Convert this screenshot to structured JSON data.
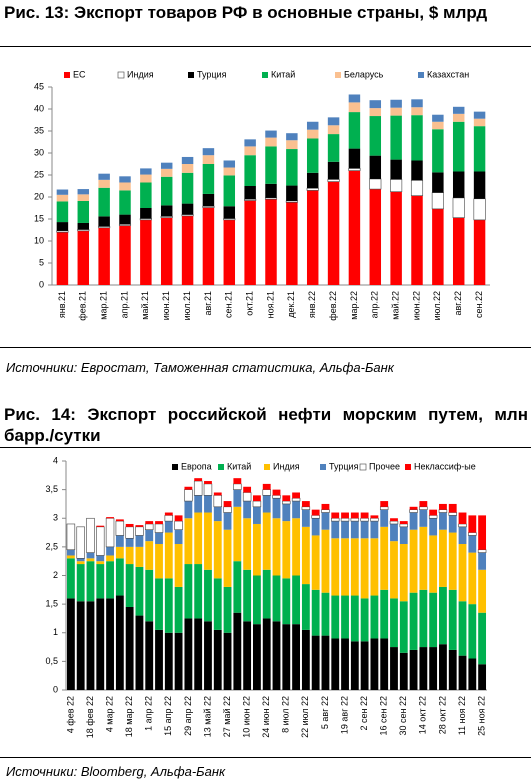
{
  "chart_data": [
    {
      "type": "bar",
      "stacked": true,
      "title": "Рис. 13: Экспорт товаров РФ в основные страны, $ млрд",
      "source": "Источники: Евростат, Таможенная статистика, Альфа-Банк",
      "categories": [
        "янв.21",
        "фев.21",
        "мар.21",
        "апр.21",
        "май.21",
        "июн.21",
        "июл.21",
        "авг.21",
        "сен.21",
        "окт.21",
        "ноя.21",
        "дек.21",
        "янв.22",
        "фев.22",
        "мар.22",
        "апр.22",
        "май.22",
        "июн.22",
        "июл.22",
        "авг.22",
        "сен.22"
      ],
      "series": [
        {
          "name": "ЕС",
          "color": "#ff0000",
          "values": [
            12,
            12.3,
            13,
            13.5,
            14.8,
            15.3,
            15.7,
            17.6,
            14.8,
            19.2,
            19.5,
            18.8,
            21.5,
            23.5,
            26,
            21.8,
            21.2,
            20.3,
            17.3,
            15.3,
            14.8
          ]
        },
        {
          "name": "Индия",
          "color": "#ffffff",
          "values": [
            0.3,
            0.3,
            0.3,
            0.3,
            0.3,
            0.3,
            0.3,
            0.3,
            0.3,
            0.3,
            0.3,
            0.3,
            0.5,
            0.5,
            0.5,
            2.3,
            2.8,
            3.5,
            3.7,
            4.5,
            4.8
          ]
        },
        {
          "name": "Турция",
          "color": "#000000",
          "values": [
            2,
            1.5,
            2.3,
            2.2,
            2.4,
            2.5,
            2.5,
            2.8,
            2.8,
            3,
            3.2,
            3.5,
            3.5,
            4,
            4.5,
            5.3,
            4.5,
            4.5,
            4.6,
            6,
            6.2
          ]
        },
        {
          "name": "Китай",
          "color": "#00b050",
          "values": [
            4.7,
            5,
            6.5,
            5.5,
            5.8,
            6.5,
            7,
            6.8,
            7,
            7,
            8.5,
            8.3,
            7.8,
            6.3,
            8.3,
            9,
            10,
            10.3,
            9.8,
            11.3,
            10.3
          ]
        },
        {
          "name": "Беларусь",
          "color": "#fac090",
          "values": [
            1.5,
            1.5,
            1.8,
            1.8,
            1.8,
            1.8,
            2,
            2,
            1.8,
            2,
            2,
            2,
            2,
            2,
            2.2,
            1.8,
            1.8,
            1.8,
            1.7,
            1.8,
            1.7
          ]
        },
        {
          "name": "Казахстан",
          "color": "#4f81bd",
          "values": [
            1.2,
            1.2,
            1.4,
            1.4,
            1.4,
            1.4,
            1.6,
            1.6,
            1.6,
            1.6,
            1.6,
            1.6,
            1.8,
            1.8,
            1.8,
            1.8,
            1.8,
            1.8,
            1.6,
            1.6,
            1.6
          ]
        }
      ],
      "ylim": [
        0,
        45
      ],
      "yticks": [
        0,
        5,
        10,
        15,
        20,
        25,
        30,
        35,
        40,
        45
      ],
      "grid": false
    },
    {
      "type": "bar",
      "stacked": true,
      "title": "Рис. 14: Экспорт российской нефти морским путем, млн барр./сутки",
      "source": "Источники: Bloomberg, Альфа-Банк",
      "categories": [
        "4 фев 22",
        null,
        "18 фев 22",
        null,
        "4 мар 22",
        null,
        "18 мар 22",
        null,
        "1 апр 22",
        null,
        "15 апр 22",
        null,
        "29 апр 22",
        null,
        "13 май 22",
        null,
        "27 май 22",
        null,
        "10 июн 22",
        null,
        "24 июн 22",
        null,
        "8 июл 22",
        null,
        "22 июл 22",
        null,
        "5 авг 22",
        null,
        "19 авг 22",
        null,
        "2 сен 22",
        null,
        "16 сен 22",
        null,
        "30 сен 22",
        null,
        "14 окт 22",
        null,
        "28 окт 22",
        null,
        "11 ноя 22",
        null,
        "25 ноя 22"
      ],
      "series": [
        {
          "name": "Европа",
          "color": "#000000",
          "values": [
            1.6,
            1.55,
            1.55,
            1.6,
            1.6,
            1.65,
            1.45,
            1.3,
            1.2,
            1.05,
            1.0,
            1.0,
            1.25,
            1.25,
            1.2,
            1.05,
            1.0,
            1.35,
            1.2,
            1.15,
            1.25,
            1.2,
            1.15,
            1.15,
            1.05,
            0.95,
            0.95,
            0.9,
            0.9,
            0.85,
            0.85,
            0.9,
            0.9,
            0.75,
            0.65,
            0.7,
            0.75,
            0.75,
            0.8,
            0.7,
            0.6,
            0.55,
            0.45
          ]
        },
        {
          "name": "Китай",
          "color": "#00b050",
          "values": [
            0.7,
            0.65,
            0.7,
            0.6,
            0.65,
            0.65,
            0.75,
            0.85,
            0.9,
            0.9,
            0.95,
            0.8,
            0.95,
            0.95,
            0.9,
            0.9,
            0.8,
            0.9,
            0.9,
            0.85,
            0.85,
            0.8,
            0.8,
            0.85,
            0.8,
            0.8,
            0.75,
            0.75,
            0.75,
            0.8,
            0.75,
            0.75,
            0.85,
            0.85,
            0.9,
            1.0,
            1.0,
            0.95,
            1.0,
            1.05,
            0.95,
            0.95,
            0.9
          ]
        },
        {
          "name": "Индия",
          "color": "#ffc000",
          "values": [
            0.05,
            0.05,
            0.05,
            0.05,
            0.1,
            0.2,
            0.3,
            0.35,
            0.5,
            0.6,
            0.8,
            0.75,
            0.8,
            0.9,
            1.0,
            1.0,
            1.0,
            0.95,
            0.9,
            0.9,
            1.0,
            1.0,
            1.0,
            1.0,
            1.0,
            0.95,
            1.1,
            1.0,
            1.0,
            1.0,
            1.05,
            1.0,
            1.1,
            1.0,
            1.0,
            1.1,
            1.1,
            1.0,
            1.0,
            1.0,
            1.0,
            0.9,
            0.75
          ]
        },
        {
          "name": "Турция",
          "color": "#4f81bd",
          "values": [
            0.1,
            0.05,
            0.1,
            0.1,
            0.15,
            0.2,
            0.15,
            0.2,
            0.2,
            0.2,
            0.2,
            0.25,
            0.3,
            0.3,
            0.3,
            0.25,
            0.3,
            0.3,
            0.3,
            0.3,
            0.3,
            0.35,
            0.3,
            0.3,
            0.3,
            0.3,
            0.3,
            0.3,
            0.3,
            0.3,
            0.3,
            0.3,
            0.3,
            0.3,
            0.3,
            0.3,
            0.3,
            0.3,
            0.3,
            0.3,
            0.3,
            0.3,
            0.3
          ]
        },
        {
          "name": "Прочее",
          "color": "#ffffff",
          "values": [
            0.45,
            0.55,
            0.6,
            0.5,
            0.5,
            0.25,
            0.2,
            0.15,
            0.1,
            0.15,
            0.1,
            0.15,
            0.2,
            0.25,
            0.2,
            0.2,
            0.1,
            0.1,
            0.15,
            0.1,
            0.1,
            0.05,
            0.05,
            0.05,
            0.05,
            0.05,
            0.05,
            0.05,
            0.05,
            0.05,
            0.05,
            0.05,
            0.05,
            0.05,
            0.05,
            0.05,
            0.05,
            0.05,
            0.05,
            0.05,
            0.05,
            0.05,
            0.05
          ]
        },
        {
          "name": "Неклассиф-ые",
          "color": "#ff0000",
          "values": [
            0,
            0,
            0,
            0.02,
            0.02,
            0.03,
            0.05,
            0.03,
            0.05,
            0.05,
            0.05,
            0.1,
            0.05,
            0.05,
            0.05,
            0.05,
            0.1,
            0.1,
            0.1,
            0.1,
            0.1,
            0.1,
            0.1,
            0.1,
            0.1,
            0.1,
            0.1,
            0.1,
            0.1,
            0.1,
            0.1,
            0.05,
            0.1,
            0.05,
            0.05,
            0.05,
            0.1,
            0.1,
            0.1,
            0.15,
            0.2,
            0.3,
            0.6
          ]
        }
      ],
      "ylim": [
        0,
        4
      ],
      "yticks": [
        0,
        {
          "value": 0.5,
          "label": "0,5"
        },
        1,
        {
          "value": 1.5,
          "label": "1,5"
        },
        2,
        {
          "value": 2.5,
          "label": "2,5"
        },
        3,
        {
          "value": 3.5,
          "label": "3,5"
        },
        4
      ],
      "grid": false
    }
  ]
}
